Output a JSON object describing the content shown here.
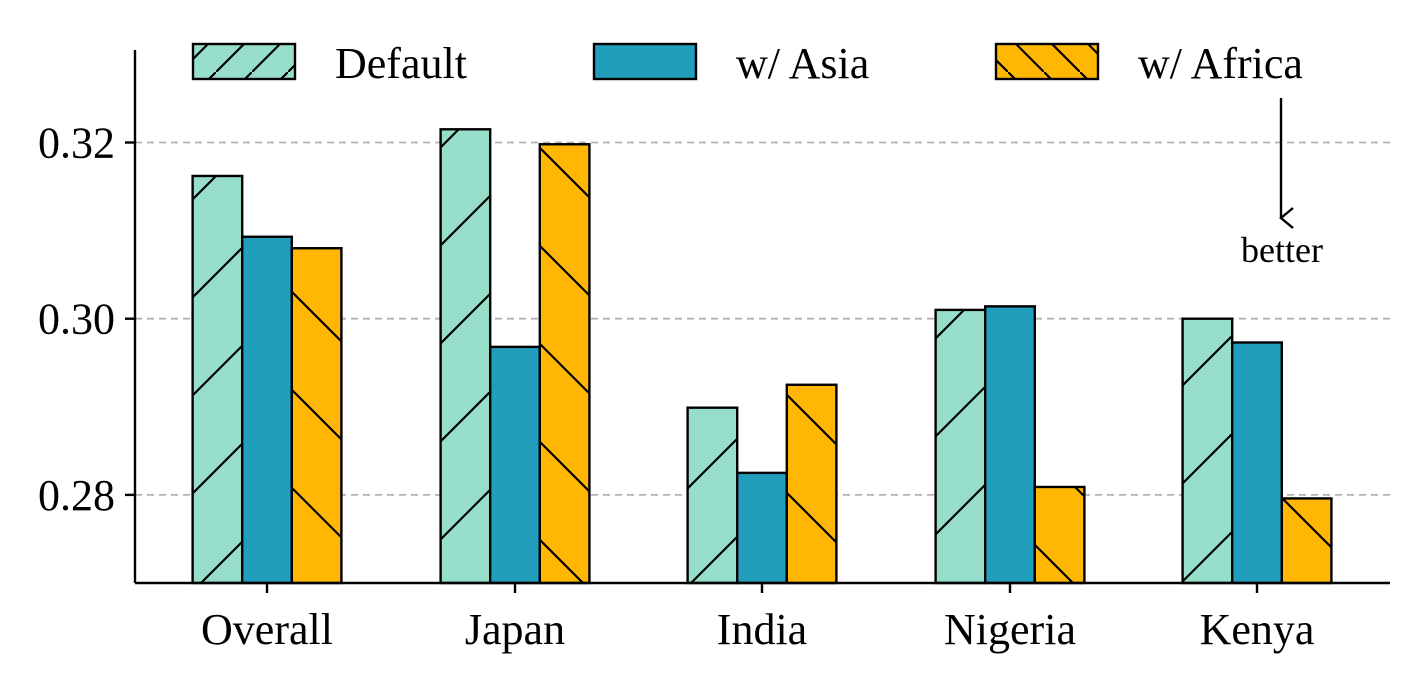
{
  "chart_data": {
    "type": "bar",
    "title": "",
    "xlabel": "",
    "ylabel": "",
    "categories": [
      "Overall",
      "Japan",
      "India",
      "Nigeria",
      "Kenya"
    ],
    "series": [
      {
        "name": "Default",
        "values": [
          0.3162,
          0.3215,
          0.2899,
          0.301,
          0.3
        ],
        "color": "#96ddca",
        "hatch": "forward-diagonal"
      },
      {
        "name": "w/ Asia",
        "values": [
          0.3093,
          0.2968,
          0.2825,
          0.3014,
          0.2973
        ],
        "color": "#219ebc",
        "hatch": "none"
      },
      {
        "name": "w/ Africa",
        "values": [
          0.308,
          0.3198,
          0.2925,
          0.2809,
          0.2796
        ],
        "color": "#ffb703",
        "hatch": "back-diagonal"
      }
    ],
    "ylim": [
      0.27,
      0.3305
    ],
    "yticks": [
      0.28,
      0.3,
      0.32
    ],
    "ytick_labels": [
      "0.28",
      "0.30",
      "0.32"
    ],
    "grid": {
      "axis": "y",
      "style": "dashed",
      "color": "#b3b3b3"
    },
    "legend": {
      "placement": "top",
      "columns": 3
    },
    "annotation": {
      "text": "better",
      "arrow_direction": "down"
    }
  }
}
